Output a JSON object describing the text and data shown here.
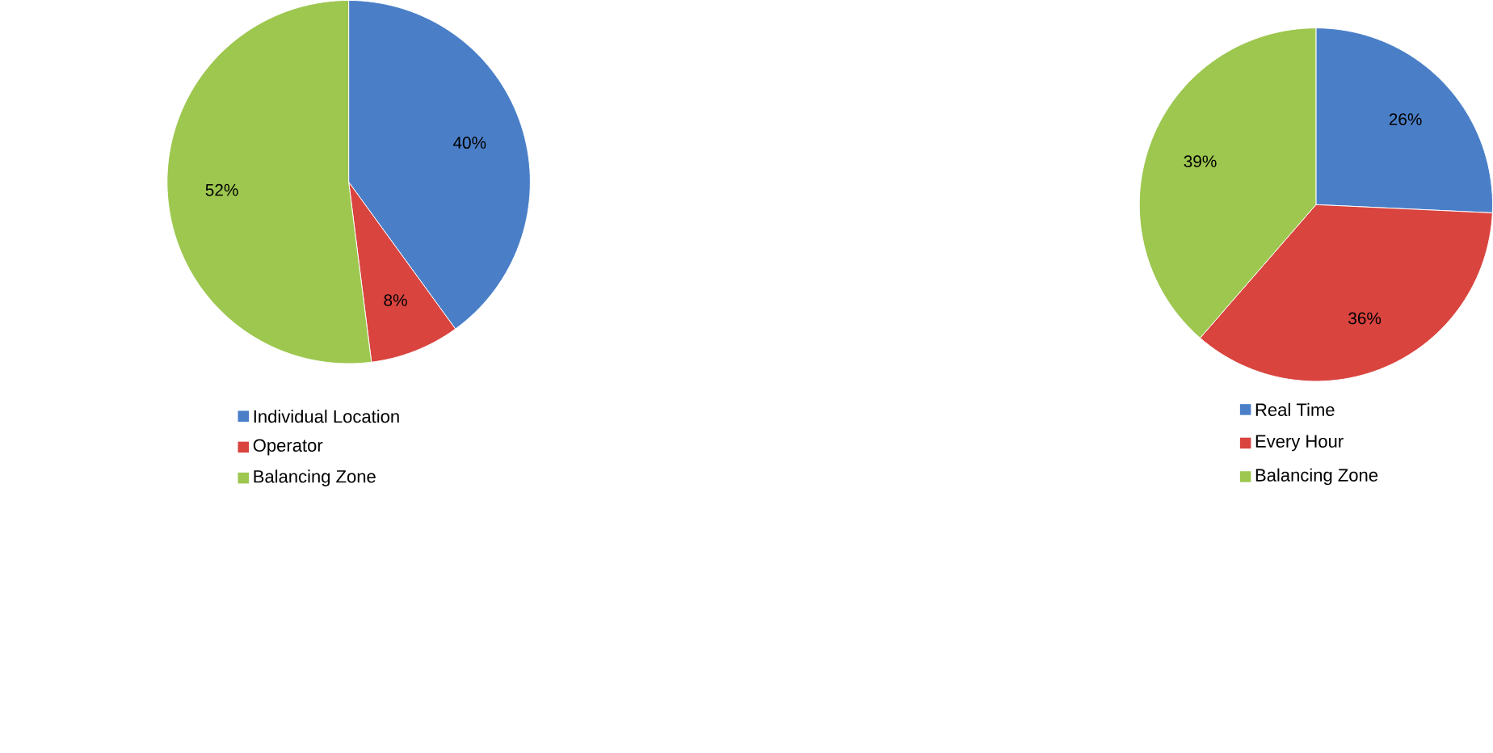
{
  "chart_data": [
    {
      "type": "pie",
      "categories": [
        "Individual Location",
        "Operator",
        "Balancing Zone"
      ],
      "values": [
        40,
        8,
        52
      ],
      "colors": [
        "#4a7fc8",
        "#d9443f",
        "#9dc74f"
      ],
      "value_labels": [
        "40%",
        "8%",
        "52%"
      ],
      "legend": "bottom"
    },
    {
      "type": "pie",
      "categories": [
        "Real Time",
        "Every Hour",
        "Balancing Zone"
      ],
      "values": [
        26,
        36,
        39
      ],
      "colors": [
        "#4a7fc8",
        "#d9443f",
        "#9dc74f"
      ],
      "value_labels": [
        "26%",
        "36%",
        "39%"
      ],
      "legend": "bottom"
    }
  ]
}
